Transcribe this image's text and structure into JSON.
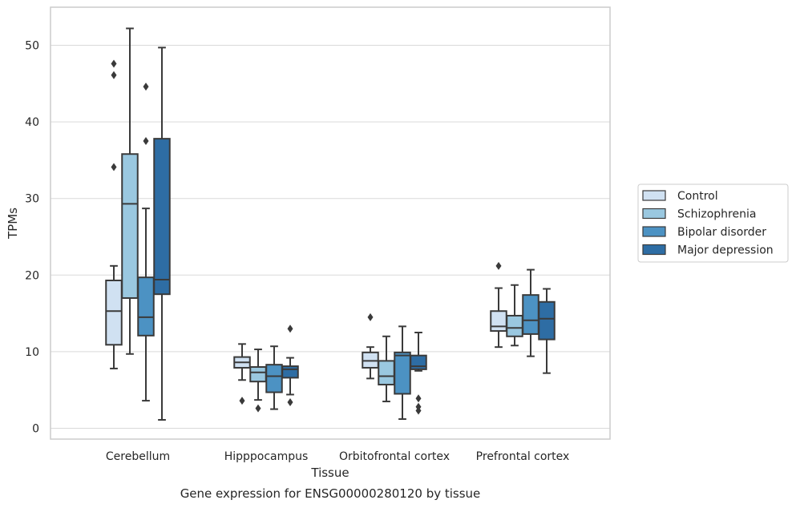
{
  "chart_data": {
    "type": "box",
    "xlabel": "Tissue",
    "ylabel": "TPMs",
    "caption": "Gene expression for ENSG00000280120 by tissue",
    "ylim": [
      -1.5,
      55
    ],
    "yticks": [
      "0",
      "10",
      "20",
      "30",
      "40",
      "50"
    ],
    "grid": "horizontal",
    "legend_position": "right",
    "categories": [
      "Cerebellum",
      "Hipppocampus",
      "Orbitofrontal cortex",
      "Prefrontal cortex"
    ],
    "series": [
      {
        "name": "Control",
        "color": "#d0e1f2",
        "boxes": [
          {
            "whisker_low": 7.8,
            "q1": 10.9,
            "median": 15.3,
            "q3": 19.3,
            "whisker_high": 21.2,
            "outliers": [
              34.1,
              46.1,
              47.6
            ]
          },
          {
            "whisker_low": 6.3,
            "q1": 7.9,
            "median": 8.6,
            "q3": 9.3,
            "whisker_high": 11.0,
            "outliers": [
              3.6
            ]
          },
          {
            "whisker_low": 6.5,
            "q1": 7.9,
            "median": 8.8,
            "q3": 9.9,
            "whisker_high": 10.6,
            "outliers": [
              14.5
            ]
          },
          {
            "whisker_low": 10.6,
            "q1": 12.7,
            "median": 13.3,
            "q3": 15.3,
            "whisker_high": 18.3,
            "outliers": [
              21.2
            ]
          }
        ]
      },
      {
        "name": "Schizophrenia",
        "color": "#9ac8e0",
        "boxes": [
          {
            "whisker_low": 9.7,
            "q1": 17.0,
            "median": 29.3,
            "q3": 35.8,
            "whisker_high": 52.2,
            "outliers": []
          },
          {
            "whisker_low": 3.7,
            "q1": 6.1,
            "median": 7.3,
            "q3": 8.0,
            "whisker_high": 10.3,
            "outliers": [
              2.6
            ]
          },
          {
            "whisker_low": 3.5,
            "q1": 5.7,
            "median": 6.8,
            "q3": 8.8,
            "whisker_high": 12.0,
            "outliers": []
          },
          {
            "whisker_low": 10.8,
            "q1": 12.0,
            "median": 13.1,
            "q3": 14.7,
            "whisker_high": 18.7,
            "outliers": []
          }
        ]
      },
      {
        "name": "Bipolar disorder",
        "color": "#4c92c3",
        "boxes": [
          {
            "whisker_low": 3.6,
            "q1": 12.1,
            "median": 14.5,
            "q3": 19.7,
            "whisker_high": 28.7,
            "outliers": [
              37.5,
              44.6
            ]
          },
          {
            "whisker_low": 2.5,
            "q1": 4.7,
            "median": 6.8,
            "q3": 8.3,
            "whisker_high": 10.7,
            "outliers": []
          },
          {
            "whisker_low": 1.2,
            "q1": 4.5,
            "median": 9.5,
            "q3": 9.9,
            "whisker_high": 13.3,
            "outliers": []
          },
          {
            "whisker_low": 9.4,
            "q1": 12.3,
            "median": 14.1,
            "q3": 17.4,
            "whisker_high": 20.7,
            "outliers": []
          }
        ]
      },
      {
        "name": "Major depression",
        "color": "#2e6da4",
        "boxes": [
          {
            "whisker_low": 1.1,
            "q1": 17.5,
            "median": 19.4,
            "q3": 37.8,
            "whisker_high": 49.7,
            "outliers": []
          },
          {
            "whisker_low": 4.4,
            "q1": 6.6,
            "median": 7.7,
            "q3": 8.1,
            "whisker_high": 9.2,
            "outliers": [
              3.4,
              13.0
            ]
          },
          {
            "whisker_low": 7.5,
            "q1": 7.7,
            "median": 8.1,
            "q3": 9.5,
            "whisker_high": 12.5,
            "outliers": [
              2.3,
              2.8,
              3.9
            ]
          },
          {
            "whisker_low": 7.2,
            "q1": 11.6,
            "median": 14.3,
            "q3": 16.5,
            "whisker_high": 18.2,
            "outliers": []
          }
        ]
      }
    ]
  }
}
